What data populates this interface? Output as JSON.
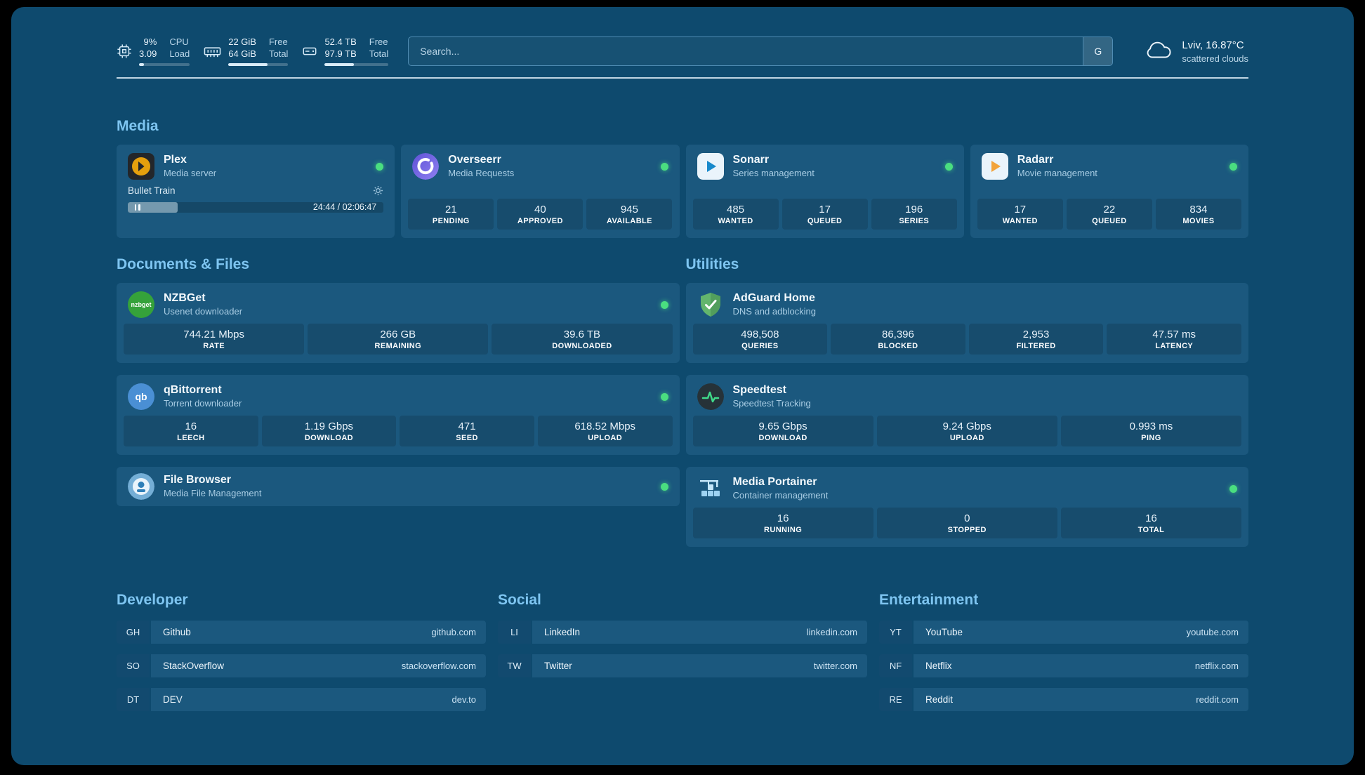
{
  "palette": {
    "background": "#0e4a6e",
    "card": "#1b587e",
    "heading": "#7ec5f1",
    "status_ok": "#4ade80",
    "plex_amber": "#e5a00d"
  },
  "topbar": {
    "resources": [
      {
        "icon": "cpu-icon",
        "value_top": "9%",
        "value_bottom": "3.09",
        "label_top": "CPU",
        "label_bottom": "Load",
        "progress_pct": 9
      },
      {
        "icon": "memory-icon",
        "value_top": "22 GiB",
        "value_bottom": "64 GiB",
        "label_top": "Free",
        "label_bottom": "Total",
        "progress_pct": 66
      },
      {
        "icon": "disk-icon",
        "value_top": "52.4 TB",
        "value_bottom": "97.9 TB",
        "label_top": "Free",
        "label_bottom": "Total",
        "progress_pct": 46
      }
    ],
    "search": {
      "placeholder": "Search...",
      "provider_button": "G"
    },
    "weather": {
      "icon": "cloud-icon",
      "location": "Lviv, 16.87°C",
      "condition": "scattered clouds"
    }
  },
  "sections": {
    "media": {
      "heading": "Media",
      "cards": [
        {
          "icon": "plex-icon",
          "title": "Plex",
          "subtitle": "Media server",
          "status_color": "#4ade80",
          "player": {
            "now_playing": "Bullet Train",
            "time": "24:44 / 02:06:47",
            "progress_pct": 19.5
          }
        },
        {
          "icon": "overseerr-icon",
          "title": "Overseerr",
          "subtitle": "Media Requests",
          "status_color": "#4ade80",
          "stats": [
            {
              "value": "21",
              "label": "PENDING"
            },
            {
              "value": "40",
              "label": "APPROVED"
            },
            {
              "value": "945",
              "label": "AVAILABLE"
            }
          ]
        },
        {
          "icon": "sonarr-icon",
          "title": "Sonarr",
          "subtitle": "Series management",
          "status_color": "#4ade80",
          "stats": [
            {
              "value": "485",
              "label": "WANTED"
            },
            {
              "value": "17",
              "label": "QUEUED"
            },
            {
              "value": "196",
              "label": "SERIES"
            }
          ]
        },
        {
          "icon": "radarr-icon",
          "title": "Radarr",
          "subtitle": "Movie management",
          "status_color": "#4ade80",
          "stats": [
            {
              "value": "17",
              "label": "WANTED"
            },
            {
              "value": "22",
              "label": "QUEUED"
            },
            {
              "value": "834",
              "label": "MOVIES"
            }
          ]
        }
      ]
    },
    "documents": {
      "heading": "Documents & Files",
      "cards": [
        {
          "icon": "nzbget-icon",
          "title": "NZBGet",
          "subtitle": "Usenet downloader",
          "status_color": "#4ade80",
          "stats": [
            {
              "value": "744.21 Mbps",
              "label": "RATE"
            },
            {
              "value": "266 GB",
              "label": "REMAINING"
            },
            {
              "value": "39.6 TB",
              "label": "DOWNLOADED"
            }
          ]
        },
        {
          "icon": "qbittorrent-icon",
          "title": "qBittorrent",
          "subtitle": "Torrent downloader",
          "status_color": "#4ade80",
          "stats": [
            {
              "value": "16",
              "label": "LEECH"
            },
            {
              "value": "1.19 Gbps",
              "label": "DOWNLOAD"
            },
            {
              "value": "471",
              "label": "SEED"
            },
            {
              "value": "618.52 Mbps",
              "label": "UPLOAD"
            }
          ]
        },
        {
          "icon": "filebrowser-icon",
          "title": "File Browser",
          "subtitle": "Media File Management",
          "status_color": "#4ade80",
          "stats": []
        }
      ]
    },
    "utilities": {
      "heading": "Utilities",
      "cards": [
        {
          "icon": "adguard-icon",
          "title": "AdGuard Home",
          "subtitle": "DNS and adblocking",
          "stats": [
            {
              "value": "498,508",
              "label": "QUERIES"
            },
            {
              "value": "86,396",
              "label": "BLOCKED"
            },
            {
              "value": "2,953",
              "label": "FILTERED"
            },
            {
              "value": "47.57 ms",
              "label": "LATENCY"
            }
          ]
        },
        {
          "icon": "speedtest-icon",
          "title": "Speedtest",
          "subtitle": "Speedtest Tracking",
          "stats": [
            {
              "value": "9.65 Gbps",
              "label": "DOWNLOAD"
            },
            {
              "value": "9.24 Gbps",
              "label": "UPLOAD"
            },
            {
              "value": "0.993 ms",
              "label": "PING"
            }
          ]
        },
        {
          "icon": "portainer-icon",
          "title": "Media Portainer",
          "subtitle": "Container management",
          "status_color": "#4ade80",
          "stats": [
            {
              "value": "16",
              "label": "RUNNING"
            },
            {
              "value": "0",
              "label": "STOPPED"
            },
            {
              "value": "16",
              "label": "TOTAL"
            }
          ]
        }
      ]
    },
    "bookmarks": [
      {
        "heading": "Developer",
        "items": [
          {
            "abbr": "GH",
            "name": "Github",
            "domain": "github.com"
          },
          {
            "abbr": "SO",
            "name": "StackOverflow",
            "domain": "stackoverflow.com"
          },
          {
            "abbr": "DT",
            "name": "DEV",
            "domain": "dev.to"
          }
        ]
      },
      {
        "heading": "Social",
        "items": [
          {
            "abbr": "LI",
            "name": "LinkedIn",
            "domain": "linkedin.com"
          },
          {
            "abbr": "TW",
            "name": "Twitter",
            "domain": "twitter.com"
          }
        ]
      },
      {
        "heading": "Entertainment",
        "items": [
          {
            "abbr": "YT",
            "name": "YouTube",
            "domain": "youtube.com"
          },
          {
            "abbr": "NF",
            "name": "Netflix",
            "domain": "netflix.com"
          },
          {
            "abbr": "RE",
            "name": "Reddit",
            "domain": "reddit.com"
          }
        ]
      }
    ]
  }
}
